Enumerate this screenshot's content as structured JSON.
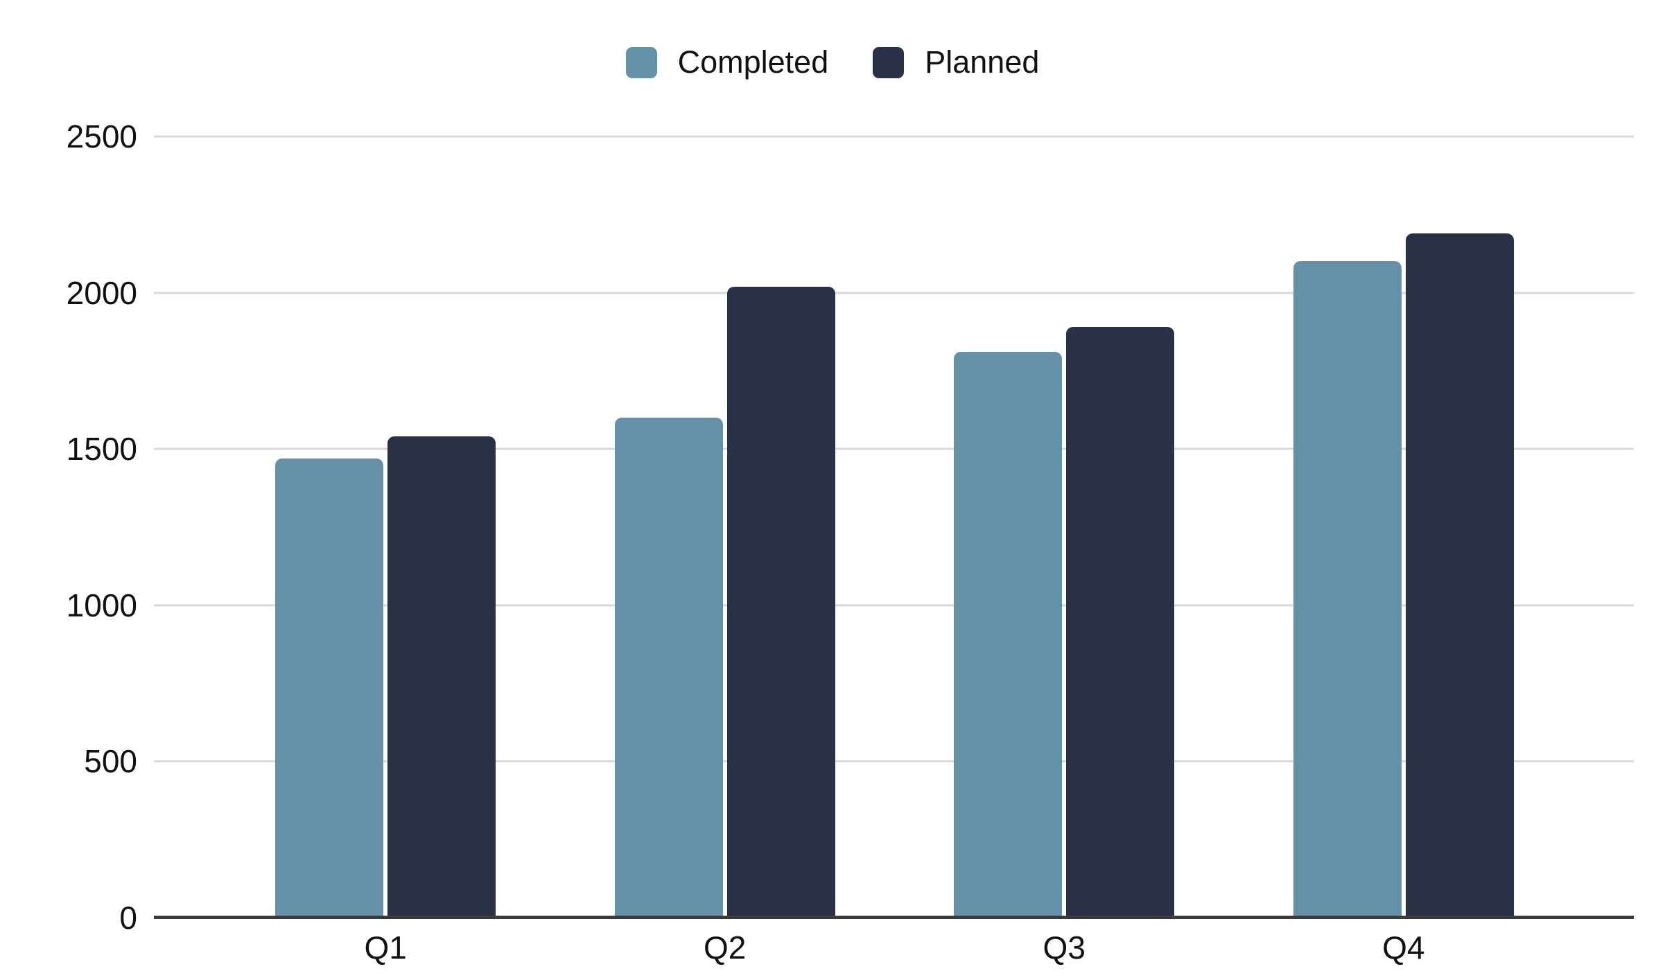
{
  "chart_data": {
    "type": "bar",
    "title": "",
    "xlabel": "",
    "ylabel": "",
    "categories": [
      "Q1",
      "Q2",
      "Q3",
      "Q4"
    ],
    "series": [
      {
        "name": "Completed",
        "color": "#6590A9",
        "values": [
          1470,
          1600,
          1810,
          2100
        ]
      },
      {
        "name": "Planned",
        "color": "#2A3045",
        "values": [
          1540,
          2020,
          1890,
          2190
        ]
      }
    ],
    "ylim": [
      0,
      2500
    ],
    "yticks": [
      0,
      500,
      1000,
      1500,
      2000,
      2500
    ],
    "grid": true,
    "legend_position": "top-center",
    "colors": {
      "gridline": "#d9d9d9",
      "axis_line": "#3b3b3b",
      "text": "#111111",
      "background": "#ffffff"
    }
  }
}
